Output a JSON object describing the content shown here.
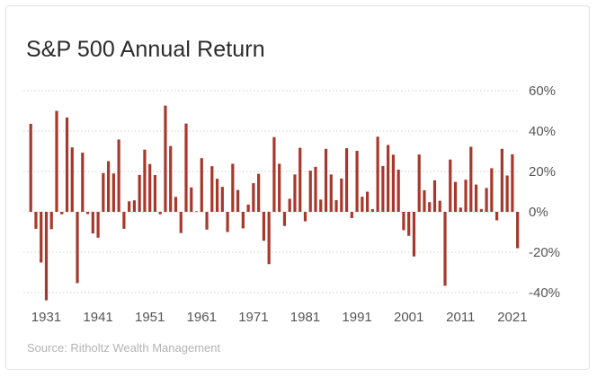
{
  "chart_data": {
    "type": "bar",
    "title": "S&P 500 Annual Return",
    "source": "Source: Ritholtz Wealth Management",
    "x": [
      1928,
      1929,
      1930,
      1931,
      1932,
      1933,
      1934,
      1935,
      1936,
      1937,
      1938,
      1939,
      1940,
      1941,
      1942,
      1943,
      1944,
      1945,
      1946,
      1947,
      1948,
      1949,
      1950,
      1951,
      1952,
      1953,
      1954,
      1955,
      1956,
      1957,
      1958,
      1959,
      1960,
      1961,
      1962,
      1963,
      1964,
      1965,
      1966,
      1967,
      1968,
      1969,
      1970,
      1971,
      1972,
      1973,
      1974,
      1975,
      1976,
      1977,
      1978,
      1979,
      1980,
      1981,
      1982,
      1983,
      1984,
      1985,
      1986,
      1987,
      1988,
      1989,
      1990,
      1991,
      1992,
      1993,
      1994,
      1995,
      1996,
      1997,
      1998,
      1999,
      2000,
      2001,
      2002,
      2003,
      2004,
      2005,
      2006,
      2007,
      2008,
      2009,
      2010,
      2011,
      2012,
      2013,
      2014,
      2015,
      2016,
      2017,
      2018,
      2019,
      2020,
      2021,
      2022
    ],
    "values": [
      43.6,
      -8.4,
      -25.1,
      -43.8,
      -8.6,
      50.0,
      -1.2,
      46.7,
      31.9,
      -35.3,
      29.3,
      -1.1,
      -10.7,
      -12.8,
      19.2,
      25.1,
      19.0,
      35.8,
      -8.4,
      5.2,
      5.7,
      18.3,
      30.8,
      23.7,
      18.2,
      -1.2,
      52.6,
      32.6,
      7.4,
      -10.5,
      43.7,
      12.1,
      0.3,
      26.6,
      -8.8,
      22.6,
      16.4,
      12.4,
      -10.0,
      23.8,
      10.8,
      -8.2,
      3.6,
      14.2,
      18.8,
      -14.3,
      -25.9,
      37.0,
      23.8,
      -7.0,
      6.5,
      18.5,
      31.7,
      -4.7,
      20.4,
      22.3,
      6.1,
      31.2,
      18.5,
      5.8,
      16.5,
      31.5,
      -3.1,
      30.2,
      7.5,
      10.0,
      1.3,
      37.2,
      22.7,
      33.1,
      28.3,
      20.9,
      -9.1,
      -11.9,
      -22.1,
      28.4,
      10.7,
      4.8,
      15.6,
      5.5,
      -36.6,
      25.9,
      14.8,
      2.1,
      15.9,
      32.2,
      13.5,
      1.4,
      11.8,
      21.6,
      -4.2,
      31.2,
      18.0,
      28.5,
      -18.0
    ],
    "xticks": [
      "1931",
      "1941",
      "1951",
      "1961",
      "1971",
      "1981",
      "1991",
      "2001",
      "2011",
      "2021"
    ],
    "xtick_years": [
      1931,
      1941,
      1951,
      1961,
      1971,
      1981,
      1991,
      2001,
      2011,
      2021
    ],
    "yticks": [
      "60%",
      "40%",
      "20%",
      "0%",
      "-20%",
      "-40%"
    ],
    "ytick_values": [
      60,
      40,
      20,
      0,
      -20,
      -40
    ],
    "ylim": [
      -45,
      60
    ],
    "bar_color": "#a8382b",
    "grid": "horizontal dotted",
    "xlabel": "",
    "ylabel": ""
  }
}
